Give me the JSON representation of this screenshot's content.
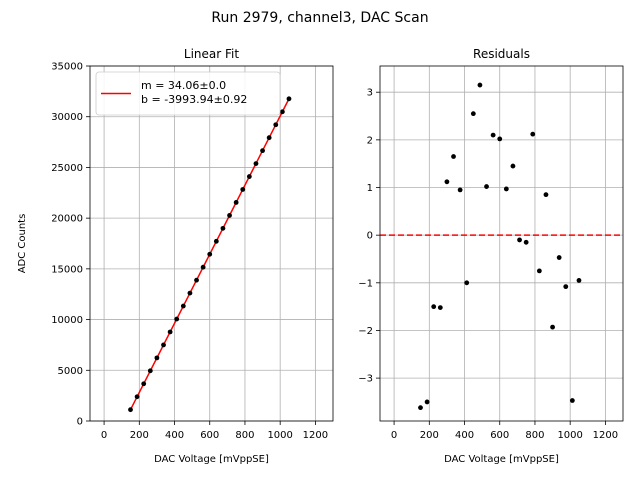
{
  "figure": {
    "suptitle": "Run 2979, channel3, DAC Scan"
  },
  "colors": {
    "fit_line": "#ff0000",
    "points": "#000000",
    "grid": "#b0b0b0",
    "zero_line": "#ff0000"
  },
  "chart_data": [
    {
      "type": "scatter",
      "title": "Linear Fit",
      "xlabel": "DAC Voltage [mVppSE]",
      "ylabel": "ADC Counts",
      "xlim": [
        -80,
        1300
      ],
      "ylim": [
        0,
        35000
      ],
      "xticks": [
        0,
        200,
        400,
        600,
        800,
        1000,
        1200
      ],
      "yticks": [
        0,
        5000,
        10000,
        15000,
        20000,
        25000,
        30000,
        35000
      ],
      "grid": true,
      "legend": {
        "position": "top-left",
        "entries": [
          "m = 34.06±0.0",
          "b = -3993.94±0.92"
        ]
      },
      "fit": {
        "m": 34.06,
        "b": -3993.94,
        "x_range": [
          150,
          1050
        ]
      },
      "x": [
        150,
        187.5,
        225,
        262.5,
        300,
        337.5,
        375,
        412.5,
        450,
        487.5,
        525,
        562.5,
        600,
        637.5,
        675,
        712.5,
        750,
        787.5,
        825,
        862.5,
        900,
        937.5,
        975,
        1012.5,
        1050
      ],
      "y": [
        1115,
        2392,
        3669,
        4946,
        6224,
        7501,
        8777,
        10053,
        11333,
        12610,
        13885,
        15163,
        16440,
        17716,
        18994,
        20269,
        21546,
        22825,
        24100,
        25378,
        26653,
        27932,
        29208,
        30482,
        31763
      ]
    },
    {
      "type": "scatter",
      "title": "Residuals",
      "xlabel": "DAC Voltage [mVppSE]",
      "ylabel": "",
      "xlim": [
        -80,
        1300
      ],
      "ylim": [
        -3.9,
        3.55
      ],
      "xticks": [
        0,
        200,
        400,
        600,
        800,
        1000,
        1200
      ],
      "yticks": [
        -3,
        -2,
        -1,
        0,
        1,
        2,
        3
      ],
      "grid": true,
      "reference_line": 0,
      "x": [
        150,
        187.5,
        225,
        262.5,
        300,
        337.5,
        375,
        412.5,
        450,
        487.5,
        525,
        562.5,
        600,
        637.5,
        675,
        712.5,
        750,
        787.5,
        825,
        862.5,
        900,
        937.5,
        975,
        1012.5,
        1050
      ],
      "y": [
        -3.62,
        -3.5,
        -1.5,
        -1.52,
        1.12,
        1.65,
        0.95,
        -1.0,
        2.55,
        3.15,
        1.02,
        2.1,
        2.02,
        0.97,
        1.45,
        -0.1,
        -0.15,
        2.12,
        -0.75,
        0.85,
        -1.93,
        -0.47,
        -1.08,
        -3.47,
        -0.95
      ]
    }
  ]
}
